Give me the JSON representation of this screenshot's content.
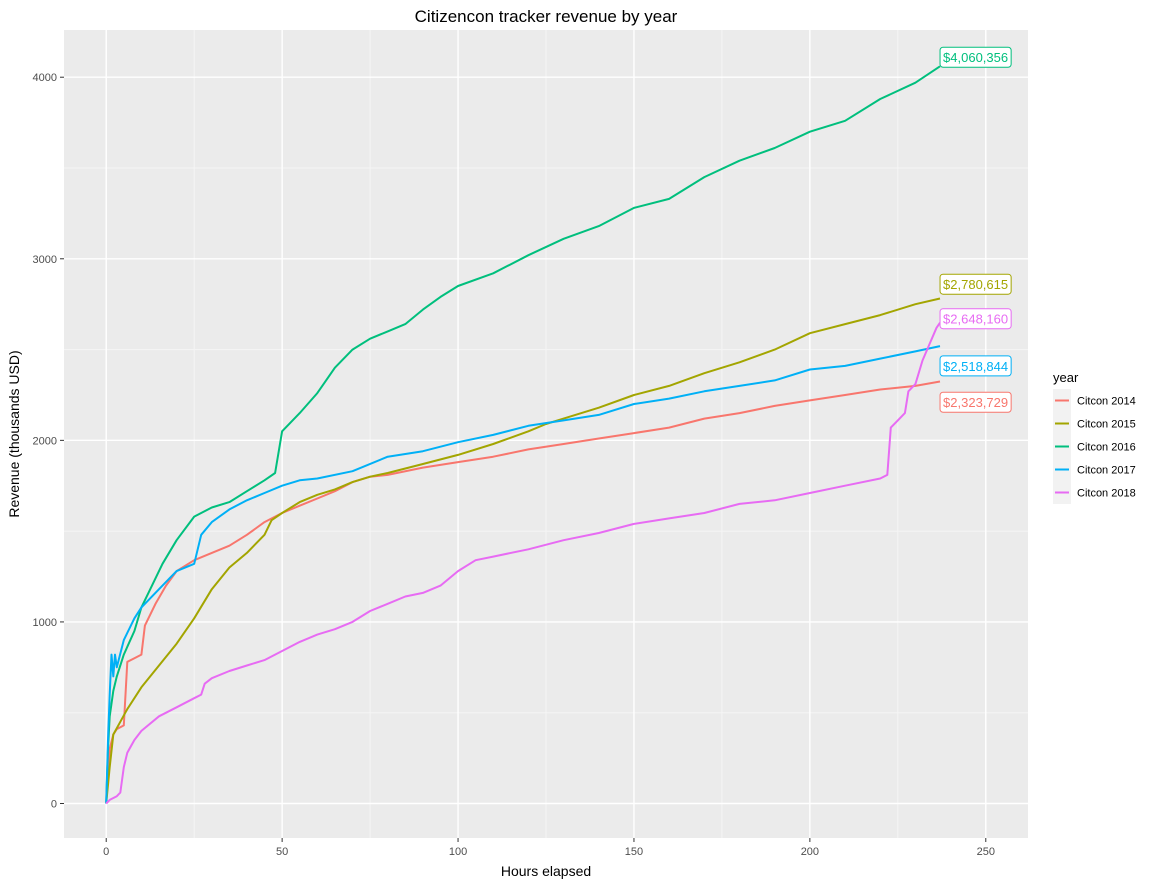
{
  "chart_data": {
    "type": "line",
    "title": "Citizencon tracker revenue by year",
    "xlabel": "Hours elapsed",
    "ylabel": "Revenue (thousands USD)",
    "xlim": [
      -12,
      262
    ],
    "ylim": [
      -190,
      4260
    ],
    "xticks": [
      0,
      50,
      100,
      150,
      200,
      250
    ],
    "yticks": [
      0,
      1000,
      2000,
      3000,
      4000
    ],
    "grid": true,
    "legend": {
      "title": "year",
      "position": "right"
    },
    "series": [
      {
        "name": "Citcon 2014",
        "color": "#F8766D",
        "end_label": "$2,323,729",
        "end_label_pos": [
          237,
          2210
        ],
        "points": [
          [
            0,
            0
          ],
          [
            0.5,
            150
          ],
          [
            1,
            300
          ],
          [
            2,
            380
          ],
          [
            3,
            410
          ],
          [
            5,
            430
          ],
          [
            6,
            780
          ],
          [
            8,
            800
          ],
          [
            10,
            820
          ],
          [
            11,
            980
          ],
          [
            14,
            1100
          ],
          [
            17,
            1200
          ],
          [
            20,
            1280
          ],
          [
            25,
            1340
          ],
          [
            30,
            1380
          ],
          [
            35,
            1420
          ],
          [
            40,
            1480
          ],
          [
            45,
            1550
          ],
          [
            50,
            1600
          ],
          [
            55,
            1640
          ],
          [
            60,
            1680
          ],
          [
            65,
            1720
          ],
          [
            70,
            1770
          ],
          [
            75,
            1800
          ],
          [
            80,
            1810
          ],
          [
            90,
            1850
          ],
          [
            100,
            1880
          ],
          [
            110,
            1910
          ],
          [
            120,
            1950
          ],
          [
            130,
            1980
          ],
          [
            140,
            2010
          ],
          [
            150,
            2040
          ],
          [
            160,
            2070
          ],
          [
            170,
            2120
          ],
          [
            180,
            2150
          ],
          [
            190,
            2190
          ],
          [
            200,
            2220
          ],
          [
            210,
            2250
          ],
          [
            220,
            2280
          ],
          [
            230,
            2300
          ],
          [
            237,
            2324
          ]
        ]
      },
      {
        "name": "Citcon 2015",
        "color": "#A3A500",
        "end_label": "$2,780,615",
        "end_label_pos": [
          237,
          2860
        ],
        "points": [
          [
            0,
            0
          ],
          [
            1,
            200
          ],
          [
            2,
            380
          ],
          [
            4,
            450
          ],
          [
            6,
            520
          ],
          [
            10,
            640
          ],
          [
            15,
            760
          ],
          [
            20,
            880
          ],
          [
            25,
            1020
          ],
          [
            30,
            1180
          ],
          [
            35,
            1300
          ],
          [
            40,
            1380
          ],
          [
            45,
            1480
          ],
          [
            47,
            1560
          ],
          [
            50,
            1600
          ],
          [
            55,
            1660
          ],
          [
            60,
            1700
          ],
          [
            65,
            1730
          ],
          [
            70,
            1770
          ],
          [
            75,
            1800
          ],
          [
            80,
            1820
          ],
          [
            90,
            1870
          ],
          [
            100,
            1920
          ],
          [
            110,
            1980
          ],
          [
            120,
            2050
          ],
          [
            125,
            2090
          ],
          [
            130,
            2120
          ],
          [
            140,
            2180
          ],
          [
            150,
            2250
          ],
          [
            160,
            2300
          ],
          [
            170,
            2370
          ],
          [
            180,
            2430
          ],
          [
            190,
            2500
          ],
          [
            200,
            2590
          ],
          [
            210,
            2640
          ],
          [
            220,
            2690
          ],
          [
            230,
            2750
          ],
          [
            237,
            2781
          ]
        ]
      },
      {
        "name": "Citcon 2016",
        "color": "#00BF7D",
        "end_label": "$4,060,356",
        "end_label_pos": [
          237,
          4110
        ],
        "points": [
          [
            0,
            0
          ],
          [
            0.5,
            300
          ],
          [
            1,
            480
          ],
          [
            2,
            620
          ],
          [
            3,
            700
          ],
          [
            5,
            820
          ],
          [
            8,
            950
          ],
          [
            10,
            1080
          ],
          [
            13,
            1200
          ],
          [
            16,
            1320
          ],
          [
            20,
            1450
          ],
          [
            25,
            1580
          ],
          [
            30,
            1630
          ],
          [
            35,
            1660
          ],
          [
            40,
            1720
          ],
          [
            45,
            1780
          ],
          [
            48,
            1820
          ],
          [
            50,
            2050
          ],
          [
            55,
            2150
          ],
          [
            60,
            2260
          ],
          [
            65,
            2400
          ],
          [
            70,
            2500
          ],
          [
            75,
            2560
          ],
          [
            80,
            2600
          ],
          [
            85,
            2640
          ],
          [
            90,
            2720
          ],
          [
            95,
            2790
          ],
          [
            100,
            2850
          ],
          [
            110,
            2920
          ],
          [
            120,
            3020
          ],
          [
            130,
            3110
          ],
          [
            140,
            3180
          ],
          [
            150,
            3280
          ],
          [
            160,
            3330
          ],
          [
            170,
            3450
          ],
          [
            180,
            3540
          ],
          [
            190,
            3610
          ],
          [
            200,
            3700
          ],
          [
            210,
            3760
          ],
          [
            220,
            3880
          ],
          [
            230,
            3970
          ],
          [
            237,
            4060
          ]
        ]
      },
      {
        "name": "Citcon 2017",
        "color": "#00B0F6",
        "end_label": "$2,518,844",
        "end_label_pos": [
          237,
          2410
        ],
        "points": [
          [
            0,
            0
          ],
          [
            0.5,
            350
          ],
          [
            1,
            600
          ],
          [
            1.5,
            820
          ],
          [
            2,
            700
          ],
          [
            2.5,
            820
          ],
          [
            3,
            750
          ],
          [
            5,
            900
          ],
          [
            8,
            1020
          ],
          [
            10,
            1080
          ],
          [
            15,
            1180
          ],
          [
            20,
            1280
          ],
          [
            25,
            1320
          ],
          [
            27,
            1480
          ],
          [
            30,
            1550
          ],
          [
            35,
            1620
          ],
          [
            40,
            1670
          ],
          [
            45,
            1710
          ],
          [
            50,
            1750
          ],
          [
            55,
            1780
          ],
          [
            60,
            1790
          ],
          [
            70,
            1830
          ],
          [
            80,
            1910
          ],
          [
            90,
            1940
          ],
          [
            100,
            1990
          ],
          [
            110,
            2030
          ],
          [
            120,
            2080
          ],
          [
            130,
            2110
          ],
          [
            140,
            2140
          ],
          [
            150,
            2200
          ],
          [
            160,
            2230
          ],
          [
            170,
            2270
          ],
          [
            180,
            2300
          ],
          [
            190,
            2330
          ],
          [
            200,
            2390
          ],
          [
            210,
            2410
          ],
          [
            220,
            2450
          ],
          [
            230,
            2490
          ],
          [
            237,
            2519
          ]
        ]
      },
      {
        "name": "Citcon 2018",
        "color": "#E76BF3",
        "end_label": "$2,648,160",
        "end_label_pos": [
          237,
          2670
        ],
        "points": [
          [
            0,
            0
          ],
          [
            1,
            20
          ],
          [
            3,
            40
          ],
          [
            4,
            60
          ],
          [
            5,
            200
          ],
          [
            6,
            280
          ],
          [
            8,
            350
          ],
          [
            10,
            400
          ],
          [
            15,
            480
          ],
          [
            20,
            530
          ],
          [
            25,
            580
          ],
          [
            27,
            600
          ],
          [
            28,
            660
          ],
          [
            30,
            690
          ],
          [
            35,
            730
          ],
          [
            40,
            760
          ],
          [
            45,
            790
          ],
          [
            50,
            840
          ],
          [
            55,
            890
          ],
          [
            60,
            930
          ],
          [
            65,
            960
          ],
          [
            70,
            1000
          ],
          [
            75,
            1060
          ],
          [
            80,
            1100
          ],
          [
            85,
            1140
          ],
          [
            90,
            1160
          ],
          [
            95,
            1200
          ],
          [
            100,
            1280
          ],
          [
            105,
            1340
          ],
          [
            110,
            1360
          ],
          [
            120,
            1400
          ],
          [
            130,
            1450
          ],
          [
            140,
            1490
          ],
          [
            150,
            1540
          ],
          [
            160,
            1570
          ],
          [
            170,
            1600
          ],
          [
            180,
            1650
          ],
          [
            190,
            1670
          ],
          [
            200,
            1710
          ],
          [
            210,
            1750
          ],
          [
            220,
            1790
          ],
          [
            222,
            1810
          ],
          [
            223,
            2070
          ],
          [
            225,
            2110
          ],
          [
            227,
            2150
          ],
          [
            228,
            2270
          ],
          [
            230,
            2310
          ],
          [
            232,
            2440
          ],
          [
            234,
            2530
          ],
          [
            236,
            2620
          ],
          [
            237,
            2648
          ]
        ]
      }
    ]
  }
}
